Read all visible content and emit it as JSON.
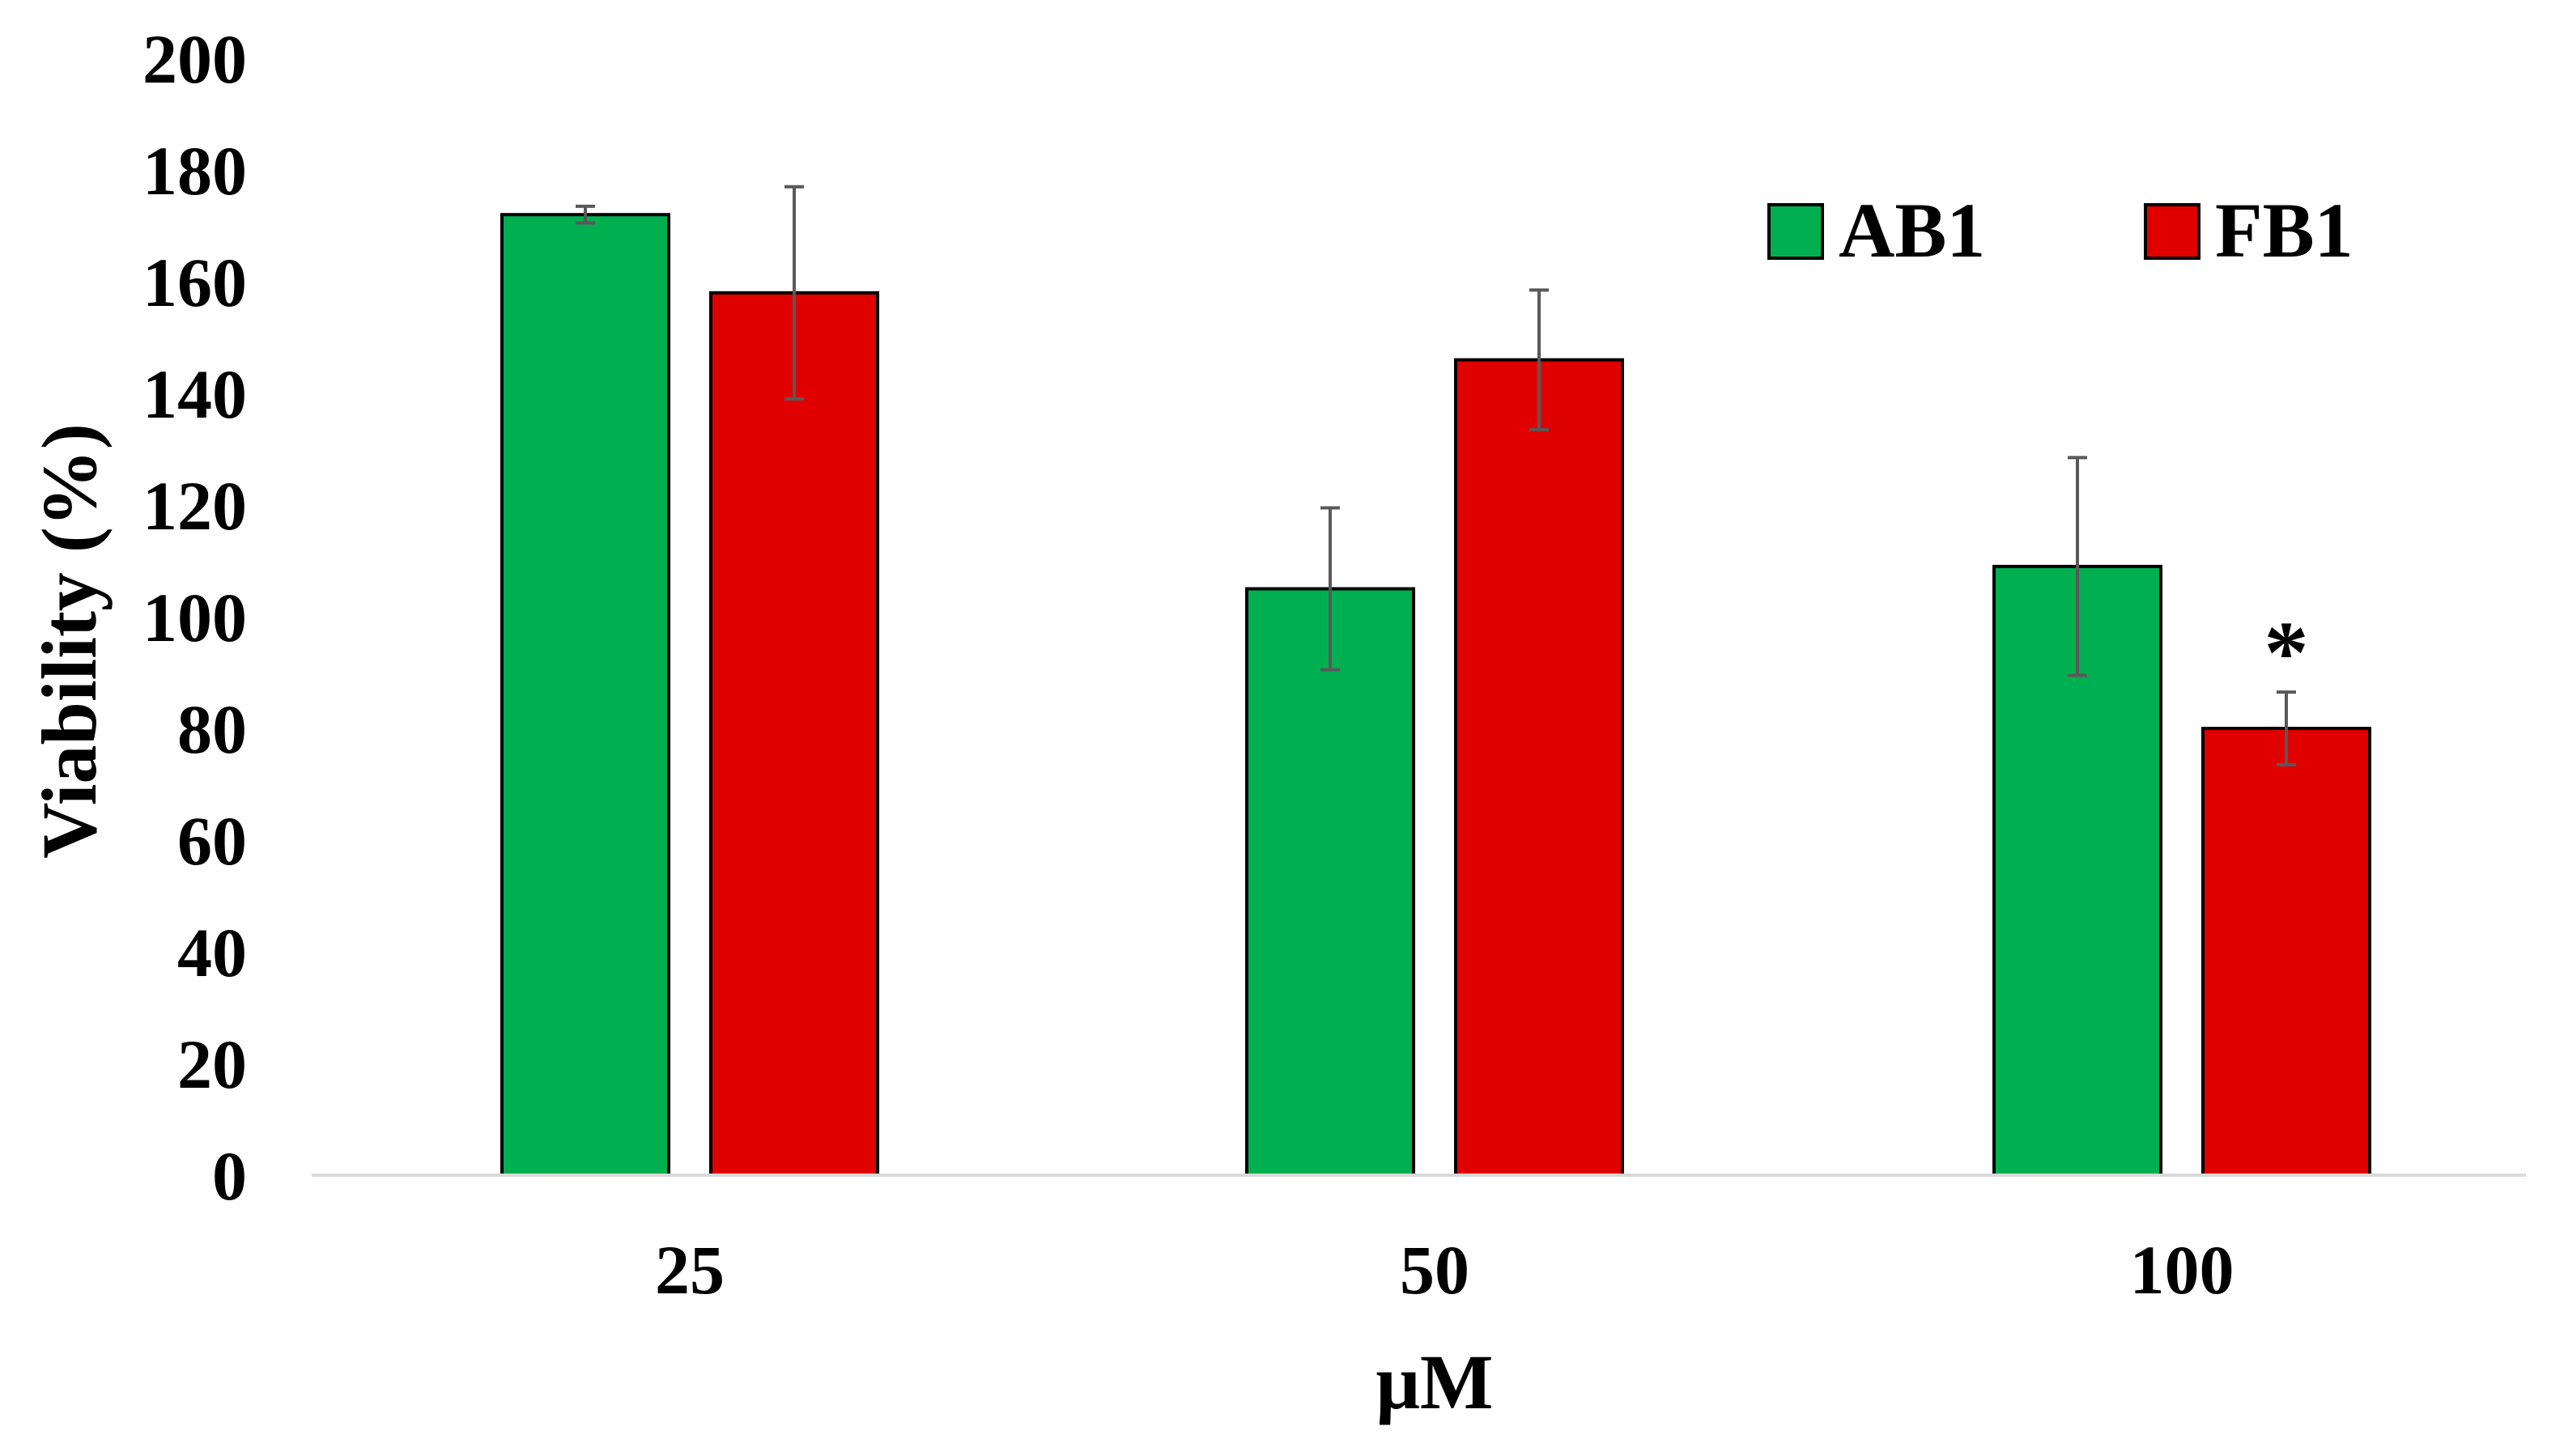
{
  "chart_data": {
    "type": "bar",
    "title": "",
    "xlabel": "μM",
    "ylabel": "Viability (%)",
    "categories": [
      "25",
      "50",
      "100"
    ],
    "ylim": [
      0,
      200
    ],
    "yticks": [
      0,
      20,
      40,
      60,
      80,
      100,
      120,
      140,
      160,
      180,
      200
    ],
    "grid": false,
    "legend_position": "top-right",
    "series": [
      {
        "name": "AB1",
        "color": "#00b050",
        "values": [
          172,
          105,
          109
        ],
        "errors": [
          1.5,
          14.5,
          19.5
        ]
      },
      {
        "name": "FB1",
        "color": "#e00000",
        "values": [
          158,
          146,
          80
        ],
        "errors": [
          19,
          12.5,
          6.5
        ]
      }
    ],
    "annotations": [
      {
        "text": "*",
        "category": "100",
        "series": "FB1"
      }
    ]
  }
}
